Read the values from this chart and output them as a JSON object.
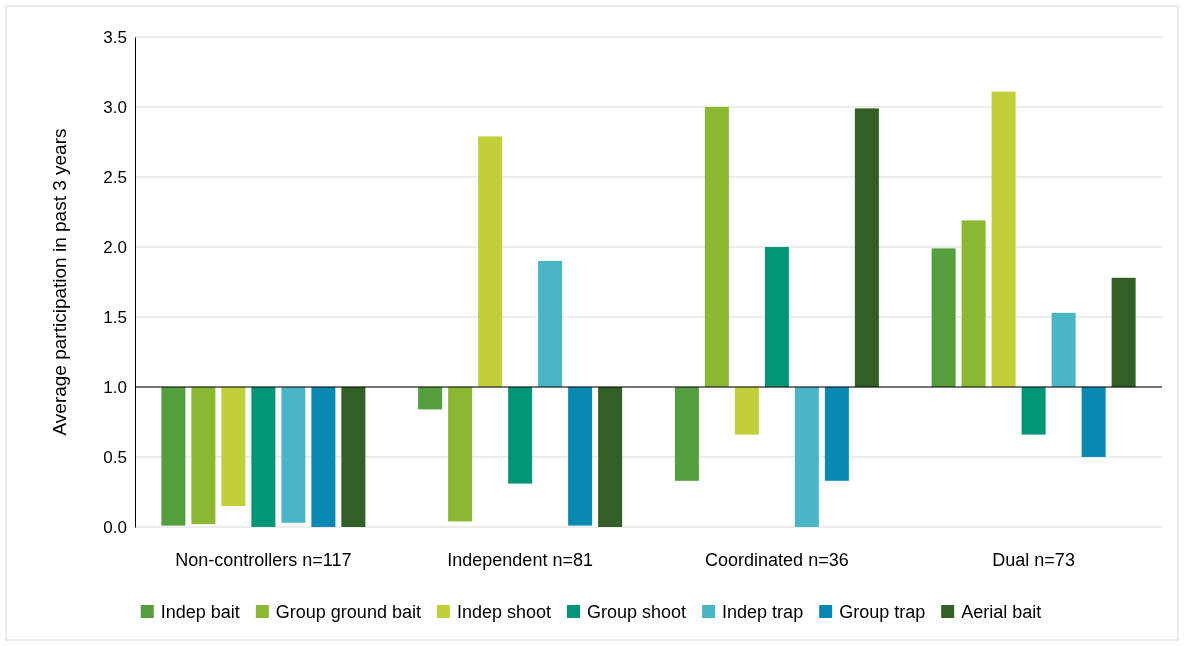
{
  "chart_data": {
    "type": "bar",
    "ylabel": "Average participation in past 3 years",
    "categories": [
      "Non-controllers n=117",
      "Independent n=81",
      "Coordinated n=36",
      "Dual n=73"
    ],
    "ylim": [
      0,
      3.5
    ],
    "yticks": [
      {
        "value": 0,
        "label": "0.0"
      },
      {
        "value": 0.5,
        "label": "0.5"
      },
      {
        "value": 1,
        "label": "1.0"
      },
      {
        "value": 1.5,
        "label": "1.5"
      },
      {
        "value": 2,
        "label": "2.0"
      },
      {
        "value": 2.5,
        "label": "2.5"
      },
      {
        "value": 3,
        "label": "3.0"
      },
      {
        "value": 3.5,
        "label": "3.5"
      }
    ],
    "grid": "y",
    "legend": "bottom",
    "ref_lines": [
      {
        "axis": "y",
        "value": 1,
        "color": "#000000"
      }
    ],
    "series": [
      {
        "name": "Indep bait",
        "color": "#559e3d",
        "base": [
          1,
          1,
          1,
          1
        ],
        "values": [
          -0.99,
          -0.16,
          -0.67,
          0.99
        ]
      },
      {
        "name": "Group ground bait",
        "color": "#8ab833",
        "base": [
          1,
          1,
          1,
          1
        ],
        "values": [
          -0.98,
          -0.96,
          2.0,
          1.19
        ]
      },
      {
        "name": "Indep shoot",
        "color": "#c0cf3a",
        "base": [
          1,
          1,
          1,
          1
        ],
        "values": [
          -0.85,
          1.79,
          -0.34,
          2.11
        ]
      },
      {
        "name": "Group shoot",
        "color": "#029676",
        "base": [
          1,
          1,
          1,
          1
        ],
        "values": [
          -1.0,
          -0.69,
          1.0,
          -0.34
        ]
      },
      {
        "name": "Indep trap",
        "color": "#4ab5c4",
        "base": [
          1,
          1,
          1,
          1
        ],
        "values": [
          -0.97,
          0.9,
          -1.0,
          0.53
        ]
      },
      {
        "name": "Group trap",
        "color": "#0989b1",
        "base": [
          1,
          1,
          1,
          1
        ],
        "values": [
          -1.0,
          -0.99,
          -0.67,
          -0.5
        ]
      },
      {
        "name": "Aerial bait",
        "color": "#315f25",
        "base": [
          1,
          1,
          1,
          1
        ],
        "values": [
          -1.0,
          -1.0,
          1.99,
          0.78
        ]
      }
    ]
  }
}
